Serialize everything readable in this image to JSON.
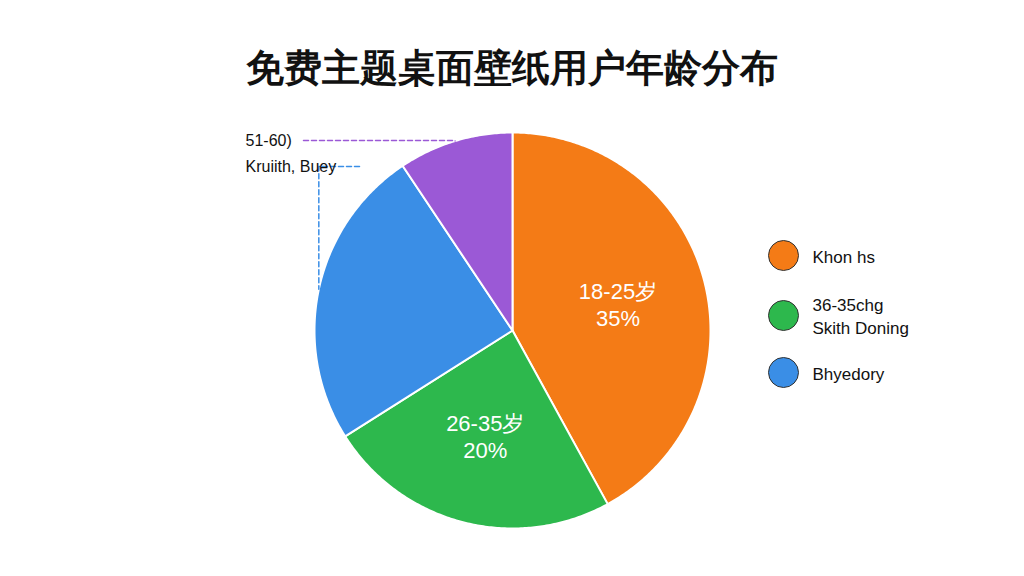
{
  "chart_data": {
    "type": "pie",
    "title": "免费主题桌面壁纸用户年龄分布",
    "categories": [
      "18-25岁",
      "26-35岁",
      null,
      null
    ],
    "values": [
      35,
      20,
      20.5,
      7.8
    ],
    "value_labels": [
      "35%",
      "20%",
      null,
      null
    ],
    "colors": [
      "#f47b16",
      "#2db84d",
      "#3a8ee6",
      "#9b59d6"
    ],
    "data_labels": true,
    "annotations": [
      {
        "text": "51-60)",
        "slice": 3
      },
      {
        "text": "Kruiith, Buey",
        "slice": 2
      }
    ],
    "legend": "right",
    "legend_labels": [
      [
        "Khon hs"
      ],
      [
        "36-35chg",
        "Skith Doning"
      ],
      [
        "Bhyedory"
      ]
    ]
  }
}
